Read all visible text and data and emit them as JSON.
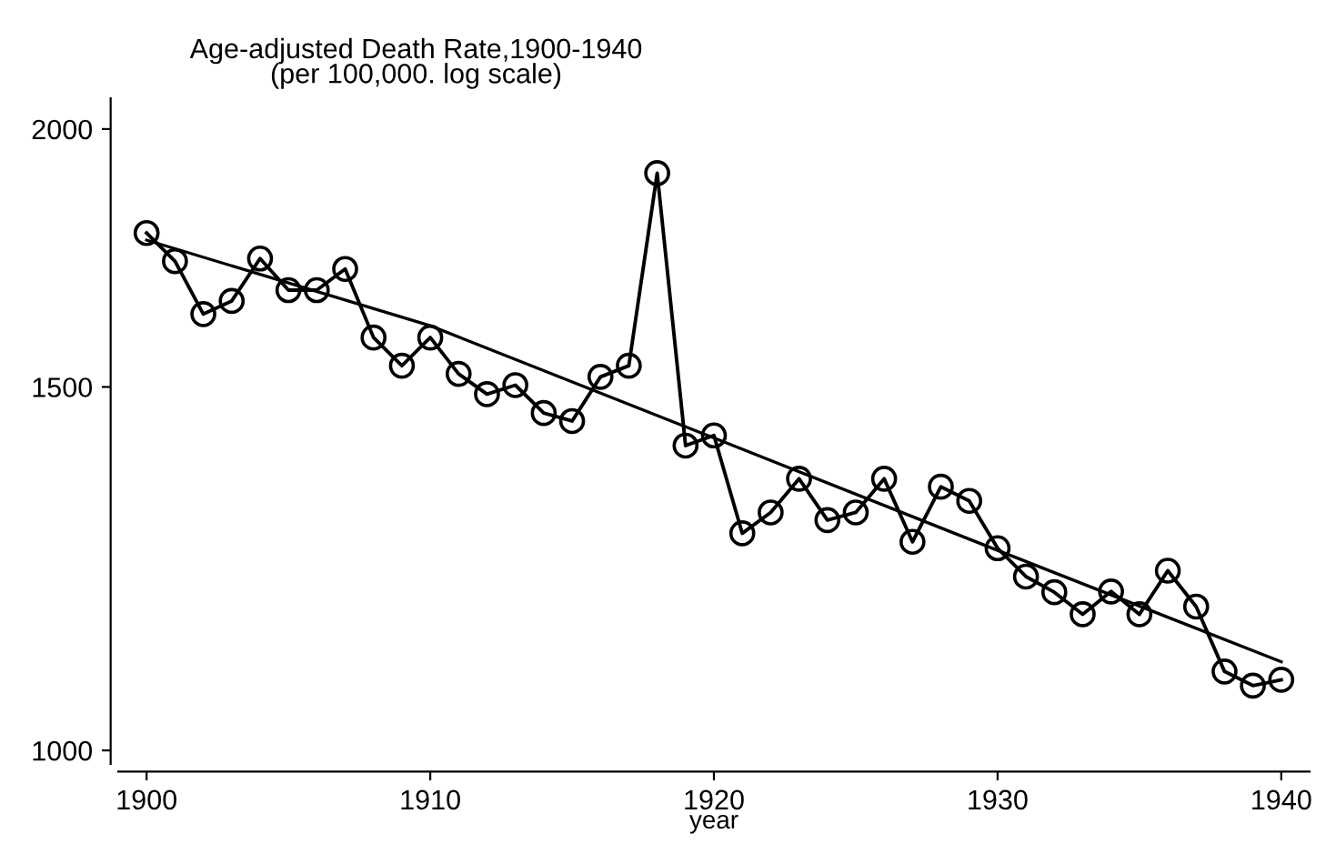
{
  "chart_data": {
    "type": "line",
    "title": "Age-adjusted Death Rate,1900-1940\n(per 100,000. log scale)",
    "xlabel": "year",
    "log": true,
    "grid": false,
    "legend": false,
    "x": [
      1900,
      1901,
      1902,
      1903,
      1904,
      1905,
      1906,
      1907,
      1908,
      1909,
      1910,
      1911,
      1912,
      1913,
      1914,
      1915,
      1916,
      1917,
      1918,
      1919,
      1920,
      1921,
      1922,
      1923,
      1924,
      1925,
      1926,
      1927,
      1928,
      1929,
      1930,
      1931,
      1932,
      1933,
      1934,
      1935,
      1936,
      1937,
      1938,
      1939,
      1940
    ],
    "series": [
      {
        "color": "#000000",
        "marker": "circle",
        "line_style": "solid",
        "values": [
          1781,
          1726,
          1627,
          1651,
          1731,
          1671,
          1671,
          1711,
          1585,
          1536,
          1585,
          1522,
          1488,
          1503,
          1457,
          1444,
          1517,
          1536,
          1904,
          1405,
          1421,
          1274,
          1304,
          1354,
          1293,
          1304,
          1354,
          1262,
          1342,
          1321,
          1253,
          1214,
          1193,
          1164,
          1194,
          1164,
          1222,
          1174,
          1092,
          1075,
          1082
        ]
      },
      {
        "type": "line",
        "color": "#000000",
        "marker": "none",
        "line_style": "solid",
        "x": [
          1900,
          1910,
          1920,
          1930,
          1940
        ],
        "values": [
          1767,
          1606,
          1417,
          1250,
          1104
        ]
      }
    ],
    "xlim": [
      1899,
      1941
    ],
    "xticks": [
      1900,
      1910,
      1920,
      1930,
      1940
    ],
    "ylim": [
      985,
      2070
    ],
    "yticks": [
      1000,
      1500,
      2000
    ]
  }
}
